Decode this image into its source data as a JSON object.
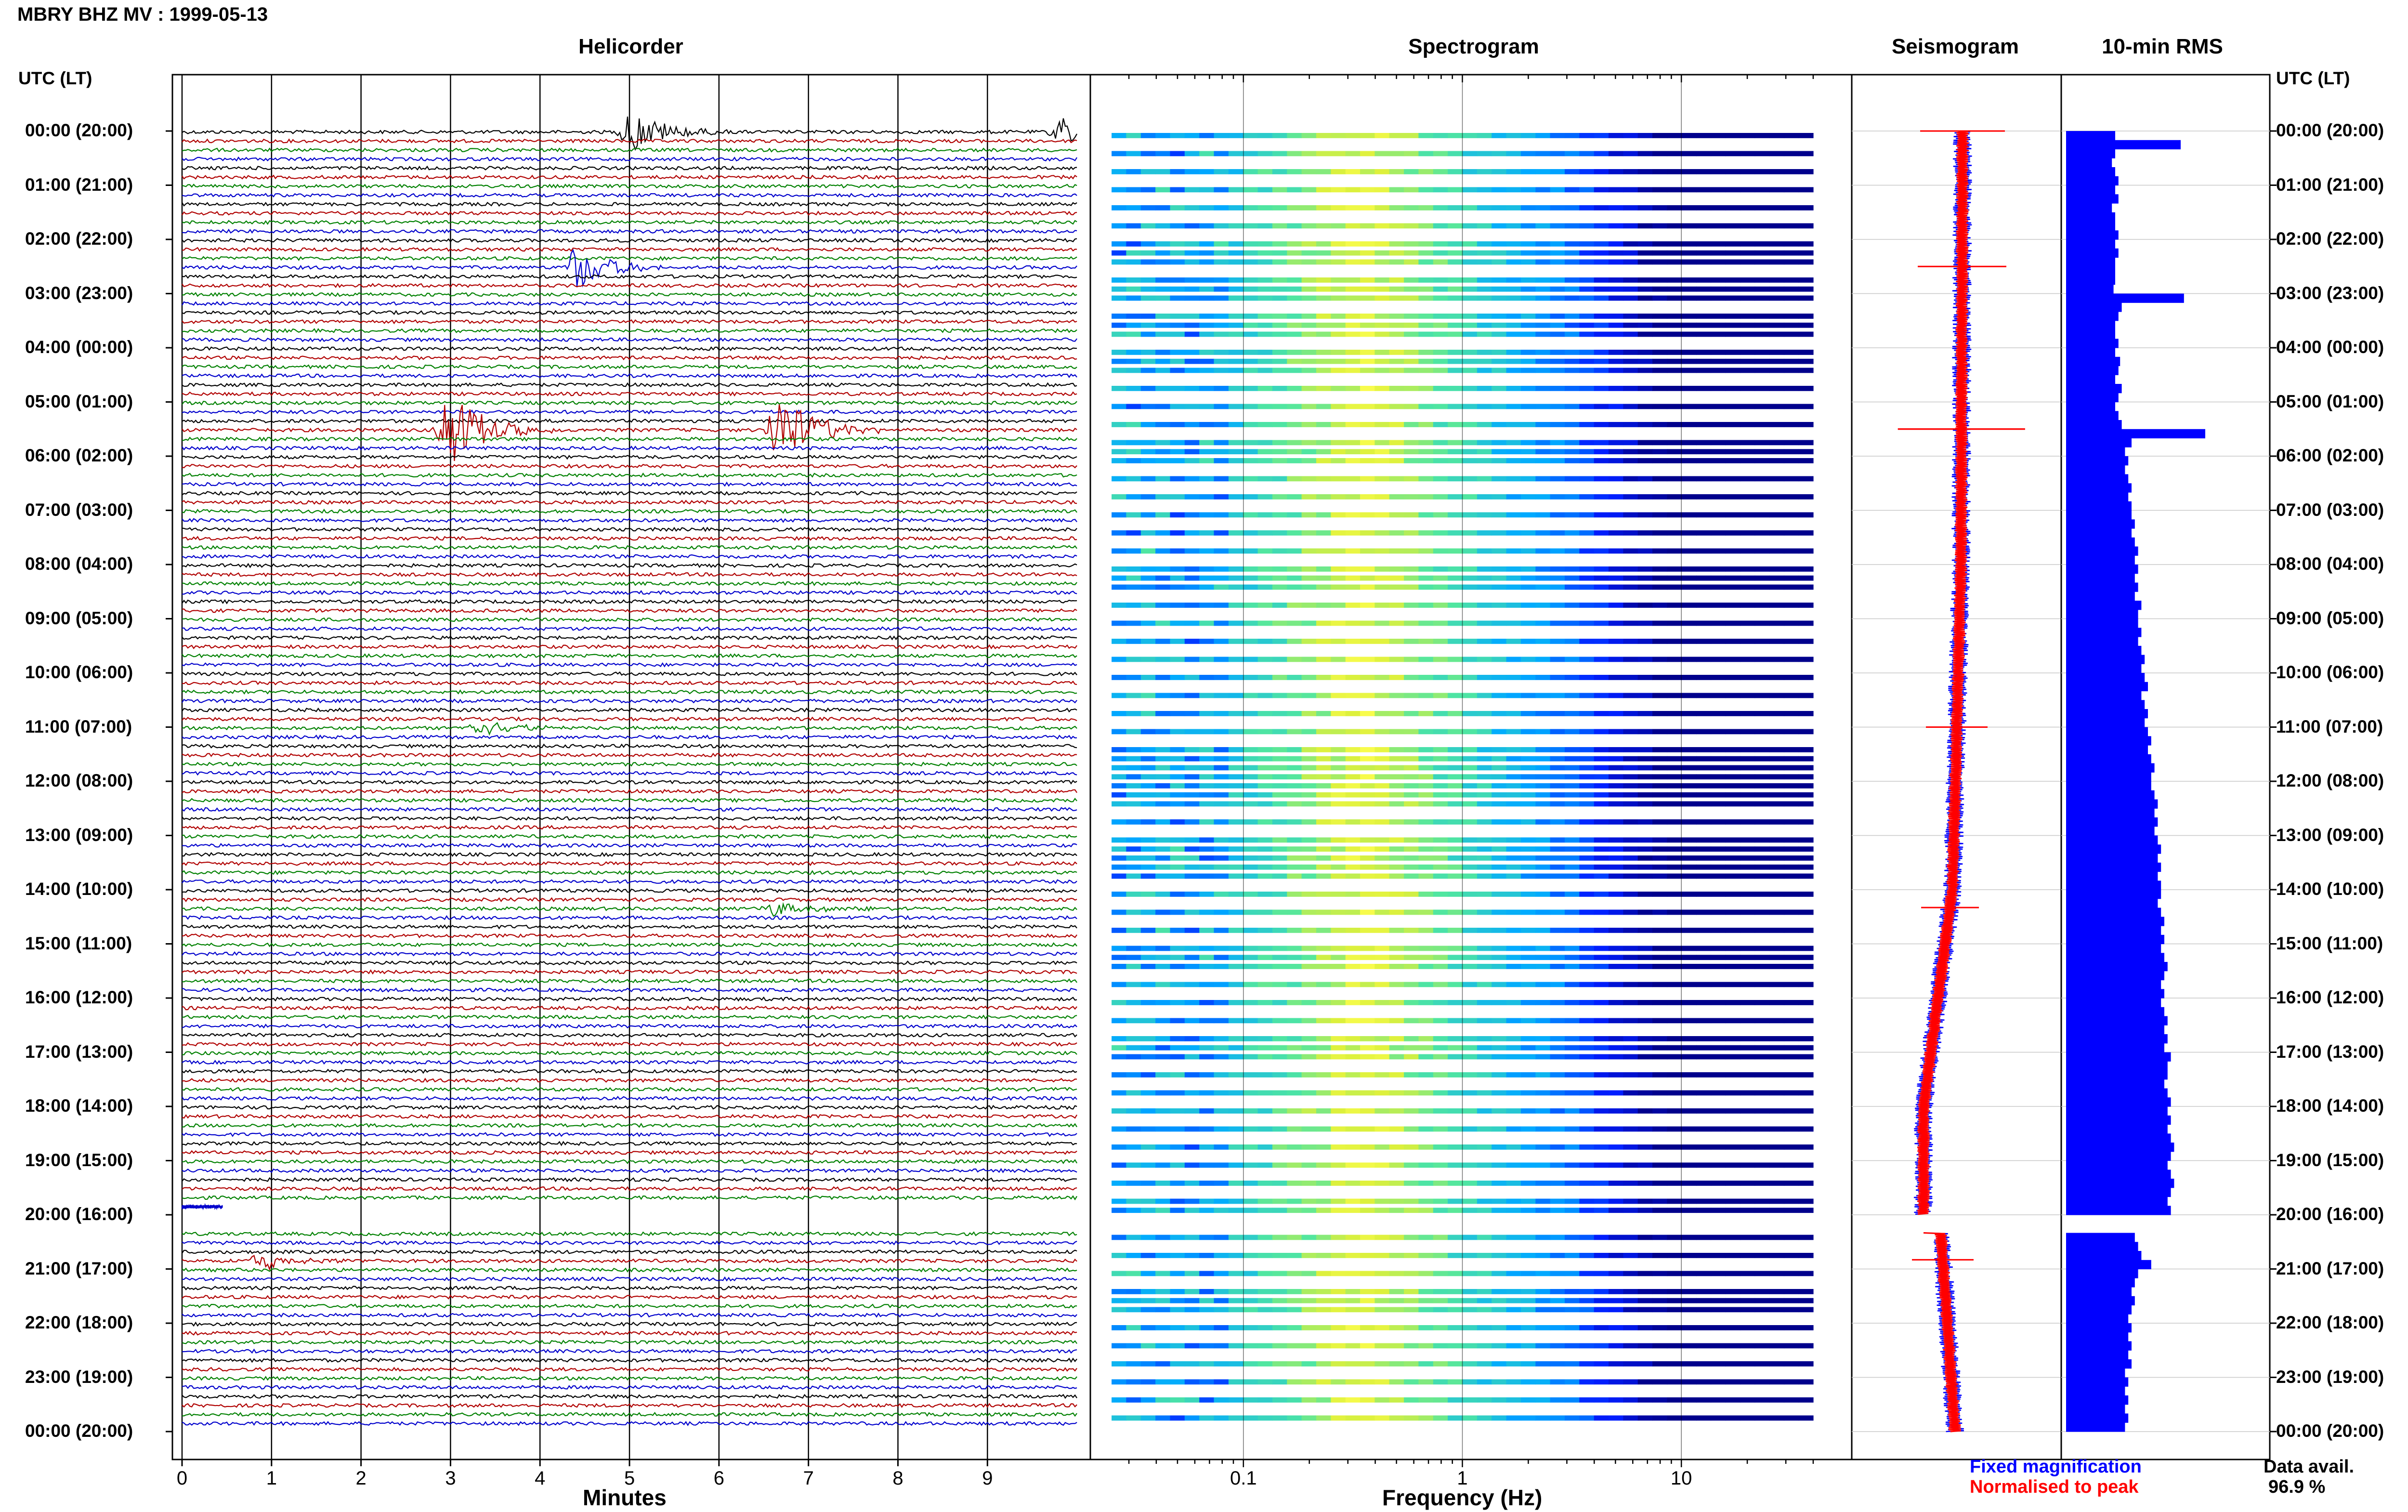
{
  "title": "MBRY BHZ MV : 1999-05-13",
  "panels": {
    "helicorder": "Helicorder",
    "spectrogram": "Spectrogram",
    "seismogram": "Seismogram",
    "rms": "10-min RMS"
  },
  "time_axis_header_left": "UTC (LT)",
  "time_axis_header_right": "UTC (LT)",
  "time_labels": [
    "00:00 (20:00)",
    "01:00 (21:00)",
    "02:00 (22:00)",
    "03:00 (23:00)",
    "04:00 (00:00)",
    "05:00 (01:00)",
    "06:00 (02:00)",
    "07:00 (03:00)",
    "08:00 (04:00)",
    "09:00 (05:00)",
    "10:00 (06:00)",
    "11:00 (07:00)",
    "12:00 (08:00)",
    "13:00 (09:00)",
    "14:00 (10:00)",
    "15:00 (11:00)",
    "16:00 (12:00)",
    "17:00 (13:00)",
    "18:00 (14:00)",
    "19:00 (15:00)",
    "20:00 (16:00)",
    "21:00 (17:00)",
    "22:00 (18:00)",
    "23:00 (19:00)",
    "00:00 (20:00)"
  ],
  "helicorder_axis": {
    "label": "Minutes",
    "ticks": [
      "0",
      "1",
      "2",
      "3",
      "4",
      "5",
      "6",
      "7",
      "8",
      "9"
    ]
  },
  "spectrogram_axis": {
    "label": "Frequency (Hz)",
    "ticks": [
      "0.1",
      "1",
      "10"
    ],
    "scale": "log",
    "range_hz": [
      0.025,
      40
    ]
  },
  "legend": {
    "fixed": "Fixed magnification",
    "normalised": "Normalised to peak"
  },
  "data_availability": {
    "label": "Data avail.",
    "value": "96.9 %"
  },
  "colors": {
    "trace_cycle": [
      "#000000",
      "#b00000",
      "#008000",
      "#0000cc"
    ],
    "rms_bar": "#0000ff",
    "seis_fixed": "#0000ff",
    "seis_norm": "#ff0000",
    "spectro_low": "#00008b",
    "spectro_high": "#ffff40"
  },
  "chart_data": {
    "type": "bar",
    "title": "10-min RMS",
    "xlabel": "",
    "ylabel": "UTC (LT)",
    "categories_note": "10-minute intervals from 00:00 to 24:00 UTC; data gap 20:00-20:20",
    "rms_relative": [
      0.3,
      0.7,
      0.3,
      0.28,
      0.3,
      0.32,
      0.3,
      0.32,
      0.28,
      0.3,
      0.3,
      0.32,
      0.3,
      0.32,
      0.3,
      0.3,
      0.3,
      0.29,
      0.72,
      0.34,
      0.32,
      0.3,
      0.3,
      0.32,
      0.3,
      0.33,
      0.32,
      0.3,
      0.34,
      0.32,
      0.3,
      0.32,
      0.34,
      0.85,
      0.4,
      0.36,
      0.38,
      0.36,
      0.38,
      0.4,
      0.38,
      0.4,
      0.4,
      0.42,
      0.4,
      0.42,
      0.44,
      0.42,
      0.44,
      0.42,
      0.44,
      0.42,
      0.46,
      0.44,
      0.44,
      0.46,
      0.44,
      0.46,
      0.48,
      0.46,
      0.48,
      0.5,
      0.46,
      0.48,
      0.5,
      0.48,
      0.5,
      0.52,
      0.5,
      0.52,
      0.54,
      0.52,
      0.52,
      0.54,
      0.56,
      0.54,
      0.56,
      0.54,
      0.56,
      0.58,
      0.56,
      0.58,
      0.56,
      0.58,
      0.58,
      0.56,
      0.58,
      0.6,
      0.58,
      0.6,
      0.58,
      0.6,
      0.62,
      0.6,
      0.58,
      0.6,
      0.58,
      0.6,
      0.62,
      0.6,
      0.62,
      0.6,
      0.64,
      0.62,
      0.62,
      0.6,
      0.62,
      0.64,
      0.62,
      0.64,
      0.62,
      0.64,
      0.66,
      0.64,
      0.62,
      0.64,
      0.66,
      0.64,
      0.62,
      0.64,
      null,
      null,
      0.42,
      0.44,
      0.46,
      0.52,
      0.44,
      0.42,
      0.4,
      0.42,
      0.4,
      0.38,
      0.4,
      0.38,
      0.4,
      0.38,
      0.4,
      0.36,
      0.38,
      0.36,
      0.38,
      0.36,
      0.38,
      0.36
    ],
    "helicorder_events": [
      {
        "hour": 0.0,
        "minute": 5.0,
        "amplitude": 1.2,
        "trace_color": "#0000cc"
      },
      {
        "hour": 0.0,
        "minute": 9.8,
        "amplitude": 0.9,
        "trace_color": "#0000cc"
      },
      {
        "hour": 2.5,
        "minute": 4.4,
        "amplitude": 1.3,
        "trace_color": "#000000"
      },
      {
        "hour": 5.5,
        "minute": 2.95,
        "amplitude": 2.3,
        "trace_color": "#000000"
      },
      {
        "hour": 5.5,
        "minute": 6.65,
        "amplitude": 2.3,
        "trace_color": "#000000"
      },
      {
        "hour": 11.0,
        "minute": 3.3,
        "amplitude": 0.6,
        "trace_color": "#0000cc"
      },
      {
        "hour": 14.33,
        "minute": 6.6,
        "amplitude": 0.5,
        "trace_color": "#0000cc"
      },
      {
        "hour": 20.83,
        "minute": 0.85,
        "amplitude": 0.6,
        "trace_color": "#000000"
      }
    ],
    "data_gap_utc": [
      "20:00",
      "20:20"
    ]
  }
}
